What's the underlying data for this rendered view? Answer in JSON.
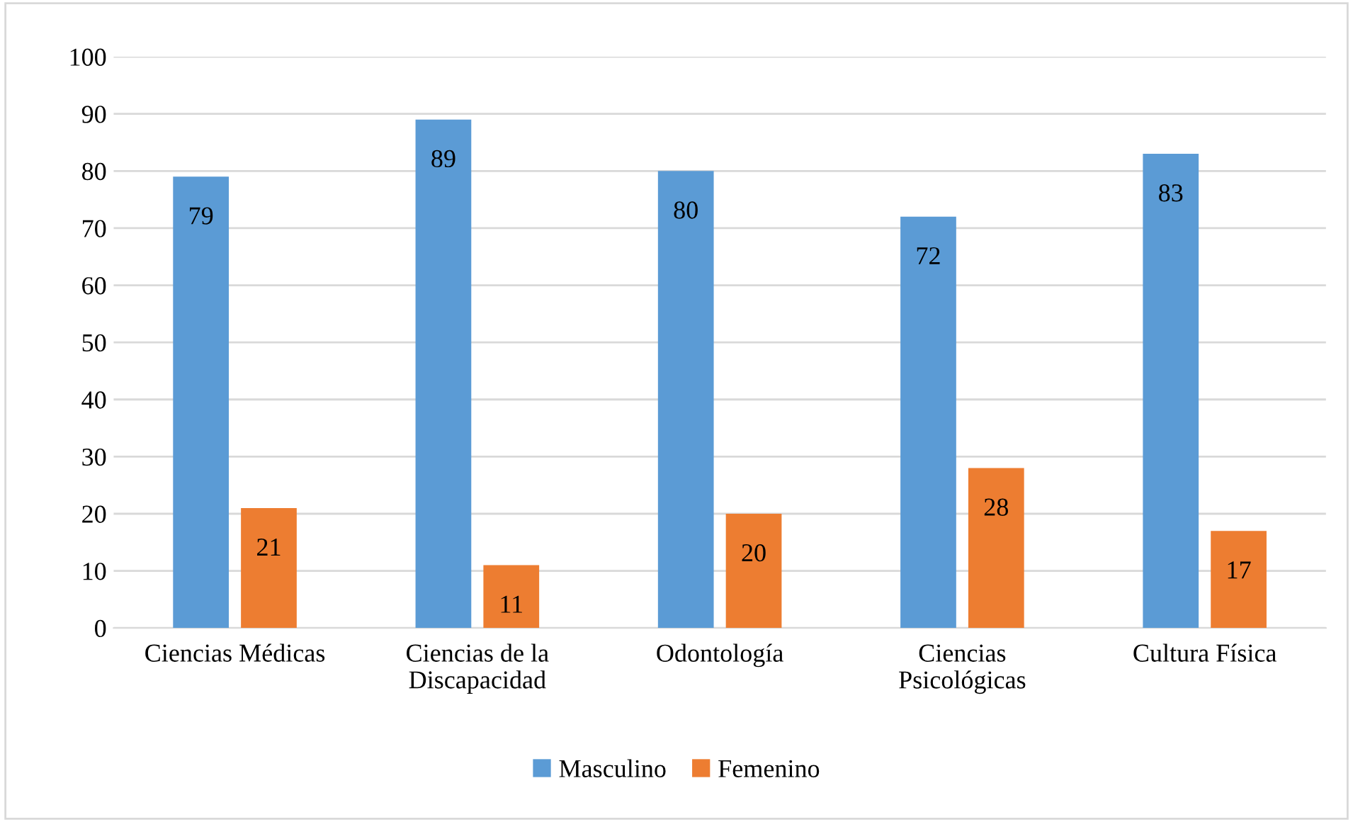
{
  "chart_data": {
    "type": "bar",
    "categories": [
      "Ciencias Médicas",
      "Ciencias de la\nDiscapacidad",
      "Odontología",
      "Ciencias\nPsicológicas",
      "Cultura Física"
    ],
    "series": [
      {
        "name": "Masculino",
        "color": "#5b9bd5",
        "values": [
          79,
          89,
          80,
          72,
          83
        ]
      },
      {
        "name": "Femenino",
        "color": "#ed7d31",
        "values": [
          21,
          11,
          20,
          28,
          17
        ]
      }
    ],
    "ylim": [
      0,
      100
    ],
    "yticks": [
      0,
      10,
      20,
      30,
      40,
      50,
      60,
      70,
      80,
      90,
      100
    ],
    "grid": "y",
    "legend": "bottom",
    "data_labels": true
  }
}
